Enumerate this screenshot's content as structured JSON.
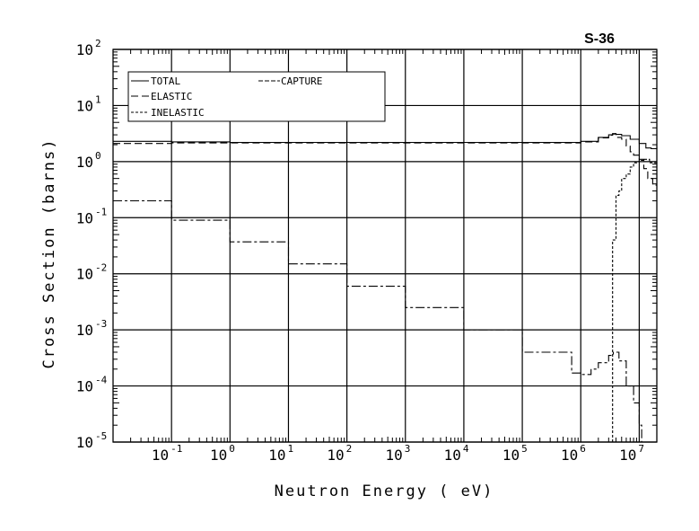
{
  "chart_data": {
    "type": "line",
    "title": "S-36",
    "xlabel": "Neutron Energy ( eV)",
    "ylabel": "Cross Section (barns)",
    "xscale": "log",
    "yscale": "log",
    "xlim": [
      0.01,
      20000000
    ],
    "ylim": [
      1e-05,
      100
    ],
    "grid": true,
    "legend_position": "top-left",
    "x_ticks": [
      {
        "exp": "-1",
        "value": 0.1
      },
      {
        "exp": "0",
        "value": 1
      },
      {
        "exp": "1",
        "value": 10
      },
      {
        "exp": "2",
        "value": 100
      },
      {
        "exp": "3",
        "value": 1000
      },
      {
        "exp": "4",
        "value": 10000
      },
      {
        "exp": "5",
        "value": 100000
      },
      {
        "exp": "6",
        "value": 1000000
      },
      {
        "exp": "7",
        "value": 10000000
      }
    ],
    "y_ticks": [
      {
        "exp": "2",
        "value": 100
      },
      {
        "exp": "1",
        "value": 10
      },
      {
        "exp": "0",
        "value": 1
      },
      {
        "exp": "-1",
        "value": 0.1
      },
      {
        "exp": "-2",
        "value": 0.01
      },
      {
        "exp": "-3",
        "value": 0.001
      },
      {
        "exp": "-4",
        "value": 0.0001
      },
      {
        "exp": "-5",
        "value": 1e-05
      }
    ],
    "tick_base": "10",
    "series": [
      {
        "name": "TOTAL",
        "dash": "",
        "label": "TOTAL",
        "x": [
          0.01,
          0.1,
          1,
          1000,
          100000,
          600000,
          1000000,
          2000000,
          3000000,
          3500000,
          4000000,
          5000000,
          7000000,
          10000000,
          13000000,
          16000000,
          20000000
        ],
        "y": [
          2.3,
          2.25,
          2.2,
          2.2,
          2.2,
          2.2,
          2.3,
          2.7,
          3.0,
          3.15,
          3.05,
          2.9,
          2.5,
          2.1,
          1.75,
          1.7,
          1.8
        ]
      },
      {
        "name": "ELASTIC",
        "dash": "8,4",
        "label": "ELASTIC",
        "x": [
          0.01,
          0.1,
          1,
          1000,
          100000,
          600000,
          1000000,
          2000000,
          3000000,
          3500000,
          4000000,
          5000000,
          6000000,
          7000000,
          8000000,
          10000000,
          12000000,
          14000000,
          17000000,
          20000000
        ],
        "y": [
          2.1,
          2.15,
          2.15,
          2.15,
          2.15,
          2.15,
          2.25,
          2.65,
          2.95,
          3.1,
          2.7,
          2.5,
          1.9,
          1.5,
          1.3,
          1.1,
          0.75,
          0.5,
          0.38,
          0.38
        ]
      },
      {
        "name": "INELASTIC",
        "dash": "3,2",
        "label": "INELASTIC",
        "x": [
          3500000,
          3500000,
          4000000,
          4500000,
          5000000,
          6000000,
          7000000,
          8000000,
          9000000,
          10000000,
          12000000,
          15000000,
          20000000
        ],
        "y": [
          1e-05,
          0.04,
          0.25,
          0.3,
          0.5,
          0.6,
          0.8,
          0.95,
          1.0,
          1.05,
          1.1,
          0.95,
          0.9
        ]
      },
      {
        "name": "CAPTURE",
        "dash": "10,3,3,3",
        "label": "CAPTURE",
        "x": [
          0.01,
          0.1,
          1,
          10,
          100,
          1000,
          10000,
          100000,
          700000,
          1000000,
          1500000,
          2000000,
          3000000,
          3600000,
          4500000,
          6000000,
          8000000,
          10000000,
          11000000
        ],
        "y": [
          0.2,
          0.09,
          0.037,
          0.015,
          0.006,
          0.0025,
          0.001,
          0.0004,
          0.00017,
          0.00016,
          0.0002,
          0.00026,
          0.00035,
          0.0004,
          0.00028,
          0.0001,
          5e-05,
          2e-05,
          1e-05
        ]
      }
    ]
  }
}
